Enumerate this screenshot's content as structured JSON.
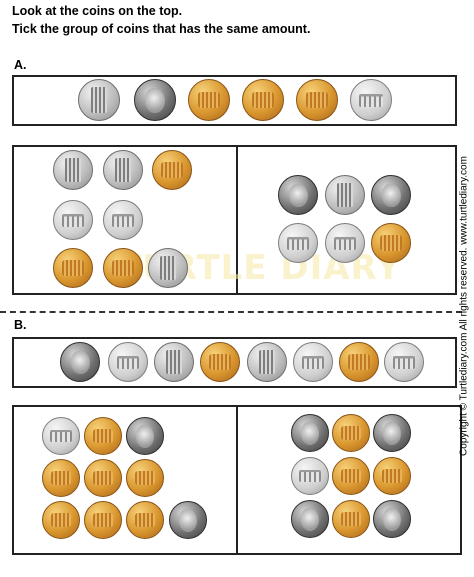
{
  "instructions": {
    "line1": "Look at the coins on the top.",
    "line2": "Tick the group of coins that has the same amount."
  },
  "sections": [
    {
      "label": "A.",
      "top_coins": [
        "dime",
        "quarter",
        "penny",
        "penny",
        "penny",
        "nickel"
      ],
      "options": [
        {
          "coins": [
            "dime",
            "dime",
            "penny",
            "nickel",
            "nickel",
            "penny",
            "penny",
            "dime"
          ]
        },
        {
          "coins": [
            "quarter",
            "dime",
            "quarter",
            "nickel",
            "nickel",
            "penny"
          ]
        }
      ]
    },
    {
      "label": "B.",
      "top_coins": [
        "quarter",
        "nickel",
        "dime",
        "penny",
        "dime",
        "nickel",
        "penny",
        "nickel"
      ],
      "options": [
        {
          "coins": [
            "nickel",
            "penny",
            "quarter",
            "penny",
            "penny",
            "penny",
            "penny",
            "penny",
            "penny",
            "quarter"
          ]
        },
        {
          "coins": [
            "quarter",
            "penny",
            "quarter",
            "nickel",
            "penny",
            "penny",
            "quarter",
            "penny",
            "quarter"
          ]
        }
      ]
    }
  ],
  "watermark": "TURTLE DIARY",
  "side_text": "Copyright © Turtlediary.com All rights reserved.   www.turtlediary.com"
}
